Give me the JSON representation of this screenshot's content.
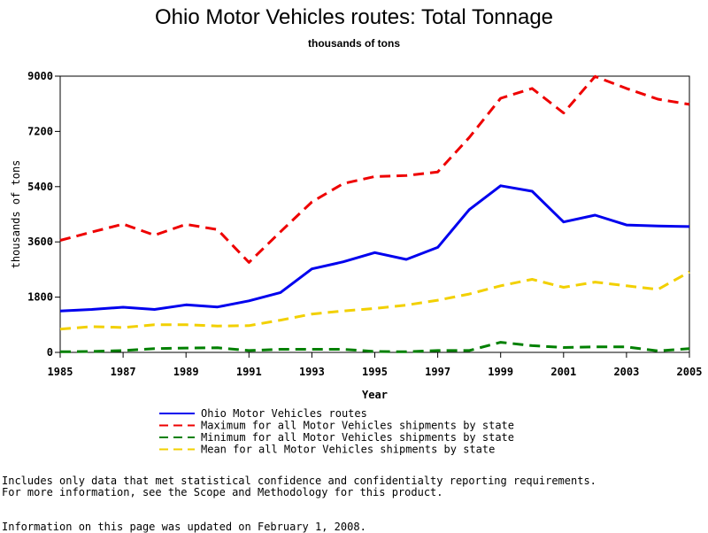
{
  "chart_data": {
    "type": "line",
    "title": "Ohio Motor Vehicles routes: Total Tonnage",
    "subtitle": "thousands of tons",
    "xlabel": "Year",
    "ylabel": "thousands of tons",
    "xlim": [
      1985,
      2005
    ],
    "ylim": [
      0,
      9000
    ],
    "x_ticks": [
      1985,
      1987,
      1989,
      1991,
      1993,
      1995,
      1997,
      1999,
      2001,
      2003,
      2005
    ],
    "y_ticks": [
      0,
      1800,
      3600,
      5400,
      7200,
      9000
    ],
    "x": [
      1985,
      1986,
      1987,
      1988,
      1989,
      1990,
      1991,
      1992,
      1993,
      1994,
      1995,
      1996,
      1997,
      1998,
      1999,
      2000,
      2001,
      2002,
      2003,
      2004,
      2005
    ],
    "series": [
      {
        "name": "Ohio Motor Vehicles routes",
        "color": "#0000ee",
        "style": "solid",
        "values": [
          1350,
          1400,
          1470,
          1400,
          1550,
          1480,
          1680,
          1950,
          2720,
          2950,
          3250,
          3030,
          3420,
          4650,
          5430,
          5250,
          4250,
          4470,
          4150,
          4120,
          4100
        ]
      },
      {
        "name": "Maximum for all Motor Vehicles shipments by state",
        "color": "#ee0000",
        "style": "dashed",
        "values": [
          3650,
          3920,
          4180,
          3820,
          4170,
          4000,
          2930,
          3930,
          4900,
          5500,
          5730,
          5760,
          5880,
          7000,
          8280,
          8600,
          7800,
          8990,
          8600,
          8250,
          8080
        ]
      },
      {
        "name": "Minimum for all Motor Vehicles shipments by state",
        "color": "#008000",
        "style": "dashed",
        "values": [
          20,
          30,
          60,
          120,
          140,
          150,
          60,
          100,
          100,
          100,
          30,
          20,
          60,
          60,
          330,
          220,
          160,
          180,
          180,
          50,
          120
        ]
      },
      {
        "name": "Mean for all Motor Vehicles shipments by state",
        "color": "#f2d000",
        "style": "dashed",
        "values": [
          760,
          840,
          810,
          900,
          900,
          860,
          870,
          1050,
          1250,
          1350,
          1430,
          1540,
          1700,
          1900,
          2170,
          2380,
          2120,
          2290,
          2170,
          2050,
          2620
        ]
      }
    ],
    "grid": false,
    "legend": "bottom"
  },
  "footnote": {
    "line1": "Includes only data that met statistical confidence and confidentialty reporting requirements.",
    "line2": "For more information, see the Scope and Methodology for this product.",
    "updated": "Information on this page was updated on February 1, 2008."
  }
}
